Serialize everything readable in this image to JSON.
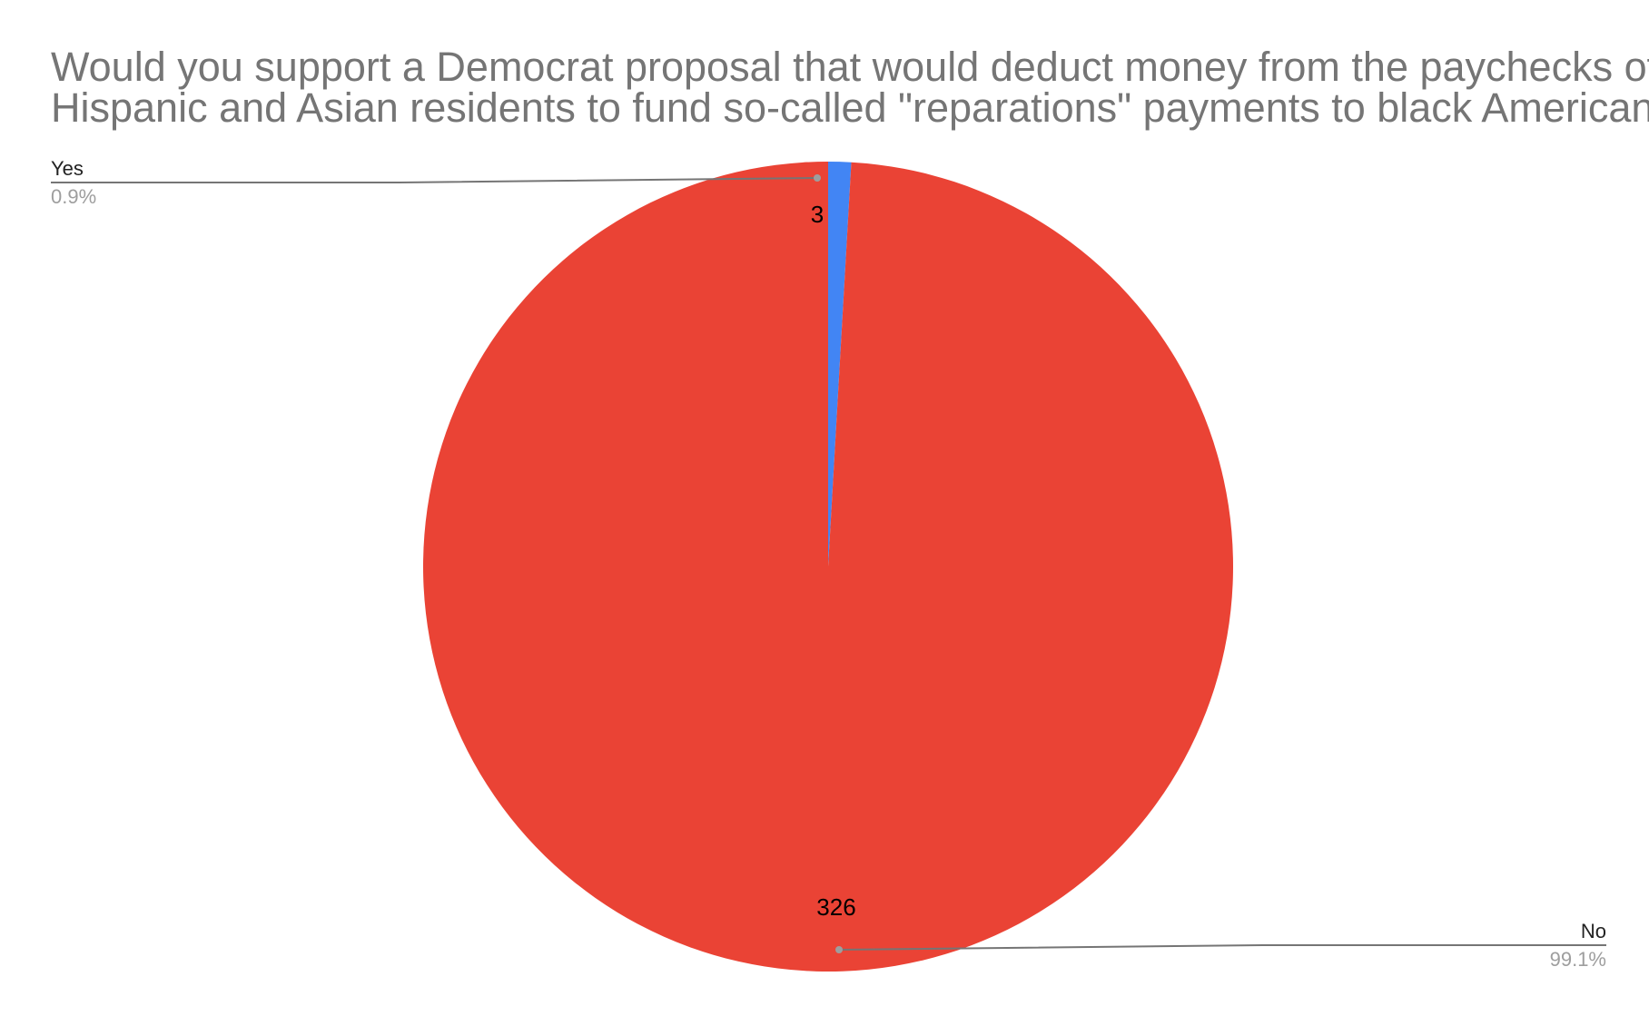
{
  "chart_data": {
    "type": "pie",
    "title_lines": [
      "Would you support a Democrat proposal that would deduct money from the paychecks of White,",
      "Hispanic and Asian residents to fund so-called \"reparations\" payments to black Americans?"
    ],
    "slices": [
      {
        "label": "Yes",
        "value": 3,
        "value_label": "3",
        "percent_label": "0.9%",
        "color": "#4285f4"
      },
      {
        "label": "No",
        "value": 326,
        "value_label": "326",
        "percent_label": "99.1%",
        "color": "#ea4335"
      }
    ],
    "start_angle": "top",
    "direction": "clockwise",
    "legend": "none",
    "label_style": "callout"
  },
  "colors": {
    "title": "#757575",
    "callout_line": "#757575",
    "label_name": "#222222",
    "label_percent": "#9e9e9e"
  }
}
